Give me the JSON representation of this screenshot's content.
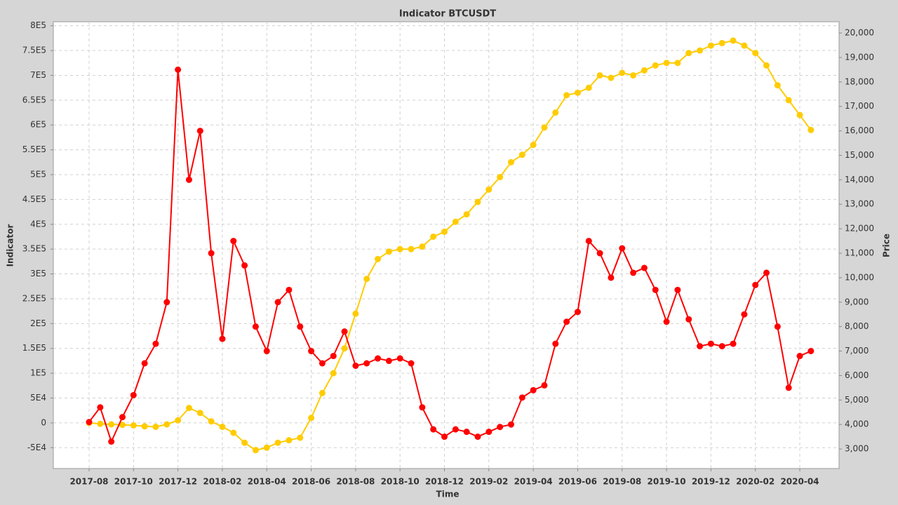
{
  "chart_data": {
    "type": "line",
    "title": "Indicator BTCUSDT",
    "xlabel": "Time",
    "ylabel": "Indicator",
    "y2label": "Price",
    "categories": [
      "2017-08",
      null,
      null,
      null,
      "2017-10",
      null,
      null,
      null,
      "2017-12",
      null,
      null,
      null,
      "2018-02",
      null,
      null,
      null,
      "2018-04",
      null,
      null,
      null,
      "2018-06",
      null,
      null,
      null,
      "2018-08",
      null,
      null,
      null,
      "2018-10",
      null,
      null,
      null,
      "2018-12",
      null,
      null,
      null,
      "2019-02",
      null,
      null,
      null,
      "2019-04",
      null,
      null,
      null,
      "2019-06",
      null,
      null,
      null,
      "2019-08",
      null,
      null,
      null,
      "2019-10",
      null,
      null,
      null,
      "2019-12",
      null,
      null,
      null,
      "2020-02",
      null,
      null,
      null,
      "2020-04",
      null
    ],
    "series": [
      {
        "color": "#ffcc00",
        "values": [
          0,
          -2000,
          -3000,
          -4000,
          -5000,
          -7000,
          -8000,
          -3000,
          5000,
          30000,
          20000,
          3000,
          -8000,
          -20000,
          -40000,
          -55000,
          -50000,
          -40000,
          -35000,
          -30000,
          10000,
          60000,
          100000,
          150000,
          220000,
          290000,
          330000,
          345000,
          350000,
          350000,
          355000,
          375000,
          385000,
          405000,
          420000,
          445000,
          470000,
          495000,
          525000,
          540000,
          560000,
          595000,
          625000,
          660000,
          665000,
          675000,
          700000,
          695000,
          705000,
          700000,
          710000,
          720000,
          725000,
          725000,
          745000,
          750000,
          760000,
          765000,
          770000,
          760000,
          745000,
          720000,
          680000,
          650000,
          620000,
          590000
        ]
      },
      {
        "color": "#ff0000",
        "axis": "y2",
        "values": [
          4100,
          4700,
          3300,
          4300,
          5200,
          6500,
          7300,
          9000,
          18500,
          14000,
          16000,
          11000,
          7500,
          11500,
          10500,
          8000,
          7000,
          9000,
          9500,
          8000,
          7000,
          6500,
          6800,
          7800,
          6400,
          6500,
          6700,
          6600,
          6700,
          6500,
          4700,
          3800,
          3500,
          3800,
          3700,
          3500,
          3700,
          3900,
          4000,
          5100,
          5400,
          5600,
          7300,
          8200,
          8600,
          11500,
          11000,
          10000,
          11200,
          10200,
          10400,
          9500,
          8200,
          9500,
          8300,
          7200,
          7300,
          7200,
          7300,
          8500,
          9700,
          10200,
          8000,
          5500,
          6800,
          7000
        ]
      }
    ],
    "ylim": [
      -92000,
      808000
    ],
    "yticks": [
      {
        "value": -50000,
        "label": "-5E4"
      },
      0,
      {
        "value": 50000,
        "label": "5E4"
      },
      {
        "value": 100000,
        "label": "1E5"
      },
      {
        "value": 150000,
        "label": "1.5E5"
      },
      {
        "value": 200000,
        "label": "2E5"
      },
      {
        "value": 250000,
        "label": "2.5E5"
      },
      {
        "value": 300000,
        "label": "3E5"
      },
      {
        "value": 350000,
        "label": "3.5E5"
      },
      {
        "value": 400000,
        "label": "4E5"
      },
      {
        "value": 450000,
        "label": "4.5E5"
      },
      {
        "value": 500000,
        "label": "5E5"
      },
      {
        "value": 550000,
        "label": "5.5E5"
      },
      {
        "value": 600000,
        "label": "6E5"
      },
      {
        "value": 650000,
        "label": "6.5E5"
      },
      {
        "value": 700000,
        "label": "7E5"
      },
      {
        "value": 750000,
        "label": "7.5E5"
      },
      {
        "value": 800000,
        "label": "8E5"
      }
    ],
    "y2lim": [
      2200,
      20460
    ],
    "y2ticks": [
      {
        "value": 3000,
        "label": "3,000"
      },
      {
        "value": 4000,
        "label": "4,000"
      },
      {
        "value": 5000,
        "label": "5,000"
      },
      {
        "value": 6000,
        "label": "6,000"
      },
      {
        "value": 7000,
        "label": "7,000"
      },
      {
        "value": 8000,
        "label": "8,000"
      },
      {
        "value": 9000,
        "label": "9,000"
      },
      {
        "value": 10000,
        "label": "10,000"
      },
      {
        "value": 11000,
        "label": "11,000"
      },
      {
        "value": 12000,
        "label": "12,000"
      },
      {
        "value": 13000,
        "label": "13,000"
      },
      {
        "value": 14000,
        "label": "14,000"
      },
      {
        "value": 15000,
        "label": "15,000"
      },
      {
        "value": 16000,
        "label": "16,000"
      },
      {
        "value": 17000,
        "label": "17,000"
      },
      {
        "value": 18000,
        "label": "18,000"
      },
      {
        "value": 19000,
        "label": "19,000"
      },
      {
        "value": 20000,
        "label": "20,000"
      }
    ],
    "grid": true
  }
}
